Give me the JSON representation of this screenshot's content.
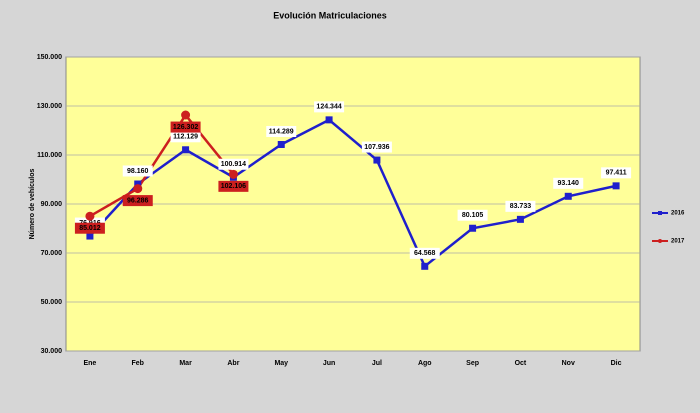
{
  "chart_data": {
    "type": "line",
    "title": "Evolución Matriculaciones",
    "y_label": "Número de vehículos",
    "categories": [
      "Ene",
      "Feb",
      "Mar",
      "Abr",
      "May",
      "Jun",
      "Jul",
      "Ago",
      "Sep",
      "Oct",
      "Nov",
      "Dic"
    ],
    "series": [
      {
        "name": "2016",
        "color": "#1f1fcc",
        "marker": "square",
        "values": [
          76916,
          98160,
          112129,
          100914,
          114289,
          124344,
          107936,
          64568,
          80105,
          83733,
          93140,
          97411
        ],
        "value_labels": [
          "76.916",
          "98.160",
          "112.129",
          "100.914",
          "114.289",
          "124.344",
          "107.936",
          "64.568",
          "80.105",
          "83.733",
          "93.140",
          "97.411"
        ]
      },
      {
        "name": "2017",
        "color": "#cc1f1f",
        "marker": "circle",
        "values": [
          85012,
          96286,
          126302,
          102106,
          null,
          null,
          null,
          null,
          null,
          null,
          null,
          null
        ],
        "value_labels": [
          "85.012",
          "96.286",
          "126.302",
          "102.106",
          null,
          null,
          null,
          null,
          null,
          null,
          null,
          null
        ]
      }
    ],
    "ylim": [
      30000,
      150000
    ],
    "yticks": [
      {
        "value": 30000,
        "label": "30.000"
      },
      {
        "value": 50000,
        "label": "50.000"
      },
      {
        "value": 70000,
        "label": "70.000"
      },
      {
        "value": 90000,
        "label": "90.000"
      },
      {
        "value": 110000,
        "label": "110.000"
      },
      {
        "value": 130000,
        "label": "130.000"
      },
      {
        "value": 150000,
        "label": "150.000"
      }
    ],
    "grid": true,
    "legend": "right",
    "plot_background": "#ffff99"
  }
}
